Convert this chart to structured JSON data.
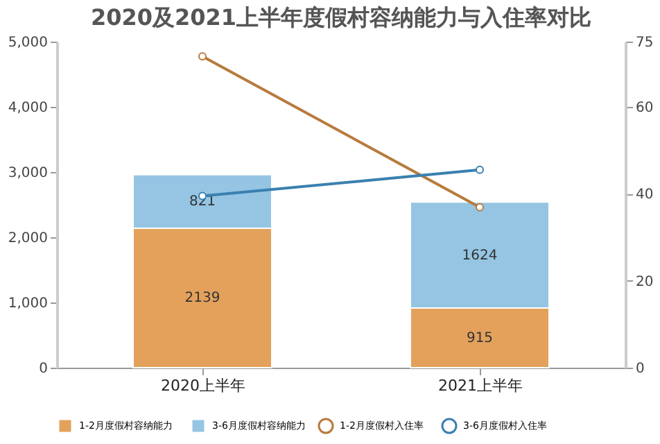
{
  "chart_data": {
    "type": "bar",
    "title": "2020及2021上半年度假村容纳能力与入住率对比",
    "categories": [
      "2020上半年",
      "2021上半年"
    ],
    "stacked": true,
    "series": [
      {
        "name": "1-2月度假村入住率",
        "type": "line",
        "axis": "y2",
        "color": "#b87a3c",
        "values": [
          71.6,
          36.9
        ]
      },
      {
        "name": "3-6月度假村入住率",
        "type": "line",
        "axis": "y2",
        "color": "#3a80b0",
        "values": [
          39.5,
          45.5
        ]
      },
      {
        "name": "1-2月度假村容纳能力",
        "type": "bar",
        "color": "#e3a15c",
        "values": [
          2139,
          915
        ],
        "value_labels": [
          "2139",
          "915"
        ]
      },
      {
        "name": "3-6月度假村容纳能力",
        "type": "bar",
        "color": "#95c5e3",
        "values": [
          821,
          1624
        ],
        "value_labels": [
          "821",
          "1624"
        ]
      }
    ],
    "ylim": [
      0,
      5000
    ],
    "yticks": [
      0,
      {
        "value": 1000,
        "label": "1,000"
      },
      {
        "value": 2000,
        "label": "2,000"
      },
      {
        "value": 3000,
        "label": "3,000"
      },
      {
        "value": 4000,
        "label": "4,000"
      },
      {
        "value": 5000,
        "label": "5,000"
      }
    ],
    "y2lim": [
      0,
      75
    ],
    "y2ticks": [
      0,
      20,
      40,
      60,
      75
    ],
    "marker": "circle",
    "grid": false,
    "legend": "bottom"
  }
}
